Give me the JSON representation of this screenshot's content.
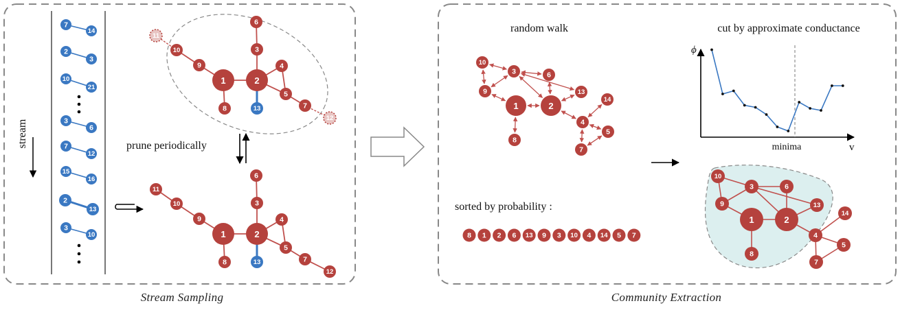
{
  "left_panel": {
    "caption": "Stream Sampling",
    "stream_label": "stream",
    "prune_label": "prune periodically",
    "stream_pairs": [
      [
        "7",
        "14"
      ],
      [
        "2",
        "3"
      ],
      [
        "10",
        "21"
      ],
      [
        "3",
        "6"
      ],
      [
        "7",
        "12"
      ],
      [
        "15",
        "16"
      ],
      [
        "2",
        "13"
      ],
      [
        "3",
        "10"
      ]
    ],
    "graph_nodes": [
      "1",
      "2",
      "3",
      "4",
      "5",
      "6",
      "7",
      "8",
      "9",
      "10",
      "11",
      "12",
      "13"
    ]
  },
  "right_panel": {
    "caption": "Community Extraction",
    "random_walk_label": "random walk",
    "cut_label": "cut by approximate conductance",
    "sorted_label": "sorted by probability :",
    "sorted_nodes": [
      "8",
      "1",
      "2",
      "6",
      "13",
      "9",
      "3",
      "10",
      "4",
      "14",
      "5",
      "7"
    ],
    "chart_phi_label": "ϕ",
    "chart_x_label": "v",
    "chart_minima_label": "minima"
  },
  "chart_data": {
    "type": "line",
    "title": "cut by approximate conductance",
    "xlabel": "v",
    "ylabel": "ϕ",
    "annotations": [
      "minima"
    ],
    "x": [
      1,
      2,
      3,
      4,
      5,
      6,
      7,
      8,
      9,
      10,
      11,
      12,
      13
    ],
    "values": [
      0.85,
      0.42,
      0.45,
      0.31,
      0.29,
      0.22,
      0.1,
      0.06,
      0.34,
      0.28,
      0.26,
      0.5,
      0.5
    ],
    "ylim": [
      0,
      1
    ],
    "grid": false
  },
  "colors": {
    "node_red": "#b5423d",
    "node_blue": "#3a78c2",
    "edge_red": "#c0504d",
    "edge_blue": "#3a78c2",
    "community_fill": "#dcefef",
    "line_blue": "#3a78c2",
    "border": "#888888"
  }
}
